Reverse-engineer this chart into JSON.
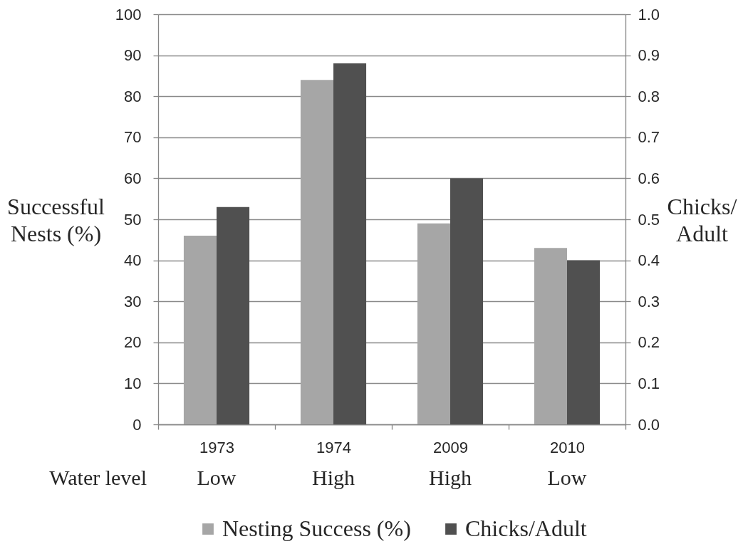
{
  "chart_data": {
    "type": "bar",
    "categories": [
      "1973",
      "1974",
      "2009",
      "2010"
    ],
    "series": [
      {
        "name": "Nesting Success (%)",
        "color": "#a6a6a6",
        "values": [
          46,
          84,
          49,
          43
        ]
      },
      {
        "name": "Chicks/Adult",
        "color": "#505050",
        "values": [
          0.53,
          0.88,
          0.6,
          0.4
        ],
        "axis": "y2"
      }
    ],
    "ylabel": "Successful Nests (%)",
    "y2label": "Chicks/Adult",
    "ylim": [
      0,
      100
    ],
    "yticks": [
      0,
      10,
      20,
      30,
      40,
      50,
      60,
      70,
      80,
      90,
      100
    ],
    "y2lim": [
      0,
      1
    ],
    "y2ticks": [
      {
        "value": 0,
        "label": "0.0"
      },
      0.1,
      0.2,
      0.3,
      0.4,
      0.5,
      0.6,
      0.7,
      0.8,
      0.9,
      {
        "value": 1,
        "label": "1.0"
      }
    ],
    "annotations": [
      "Water level",
      "Low",
      "High",
      "High",
      "Low"
    ],
    "grid": "y",
    "legend": "bottom"
  }
}
